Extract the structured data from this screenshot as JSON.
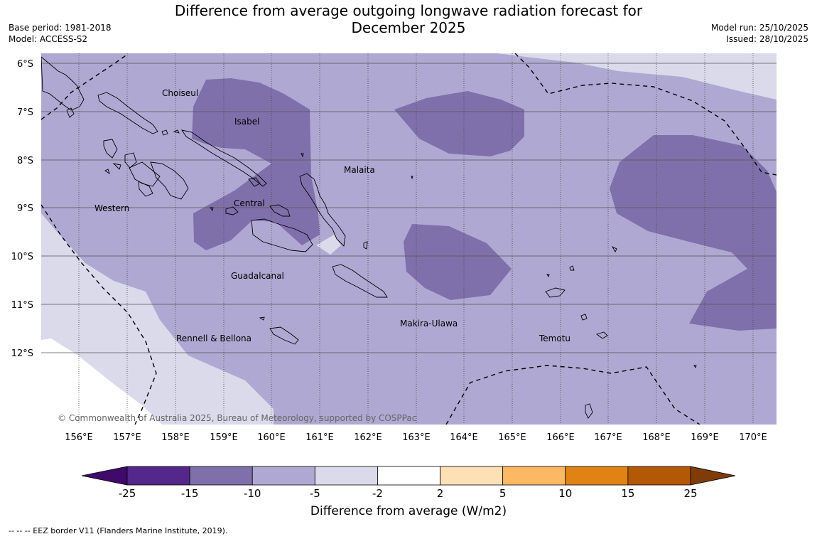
{
  "header": {
    "title_line1": "Difference from average outgoing longwave radiation forecast for",
    "title_line2": "December 2025",
    "base_period": "Base period: 1981-2018",
    "model": "Model: ACCESS-S2",
    "model_run": "Model run: 25/10/2025",
    "issued": "Issued: 28/10/2025"
  },
  "map": {
    "lat_labels": [
      "6°S",
      "7°S",
      "8°S",
      "9°S",
      "10°S",
      "11°S",
      "12°S"
    ],
    "lon_labels": [
      "156°E",
      "157°E",
      "158°E",
      "159°E",
      "160°E",
      "161°E",
      "162°E",
      "163°E",
      "164°E",
      "165°E",
      "166°E",
      "167°E",
      "168°E",
      "169°E",
      "170°E"
    ],
    "regions": [
      "Choiseul",
      "Isabel",
      "Malaita",
      "Western",
      "Central",
      "Guadalcanal",
      "Makira-Ulawa",
      "Rennell & Bellona",
      "Temotu"
    ],
    "copyright": "© Commonwealth of Australia 2025, Bureau of Meteorology, supported by COSPPac"
  },
  "colorbar": {
    "ticks": [
      "-25",
      "-15",
      "-10",
      "-5",
      "-2",
      "2",
      "5",
      "10",
      "15",
      "25"
    ],
    "colors": [
      "#3f0a6b",
      "#54288a",
      "#7f70ab",
      "#afa8d2",
      "#dadaeb",
      "#ffffff",
      "#fee0b6",
      "#fdb863",
      "#e08214",
      "#b35806",
      "#7f3b08"
    ],
    "label": "Difference from average (W/m2)"
  },
  "footnote": "--  --  -- EEZ border V11 (Flanders Marine Institute, 2019)."
}
